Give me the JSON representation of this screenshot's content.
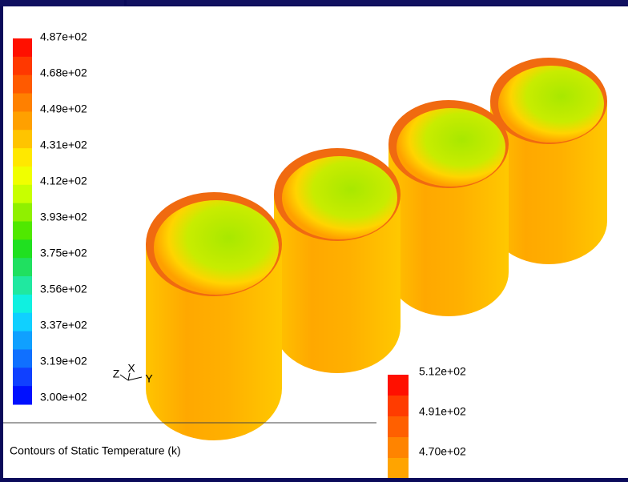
{
  "legend_main": {
    "labels": [
      "4.87e+02",
      "4.68e+02",
      "4.49e+02",
      "4.31e+02",
      "4.12e+02",
      "3.93e+02",
      "3.75e+02",
      "3.56e+02",
      "3.37e+02",
      "3.19e+02",
      "3.00e+02"
    ]
  },
  "legend_secondary": {
    "labels": [
      "5.12e+02",
      "4.91e+02",
      "4.70e+02"
    ]
  },
  "axes": {
    "z": "Z",
    "x": "X",
    "y": "Y"
  },
  "caption": "Contours of Static Temperature (k)"
}
